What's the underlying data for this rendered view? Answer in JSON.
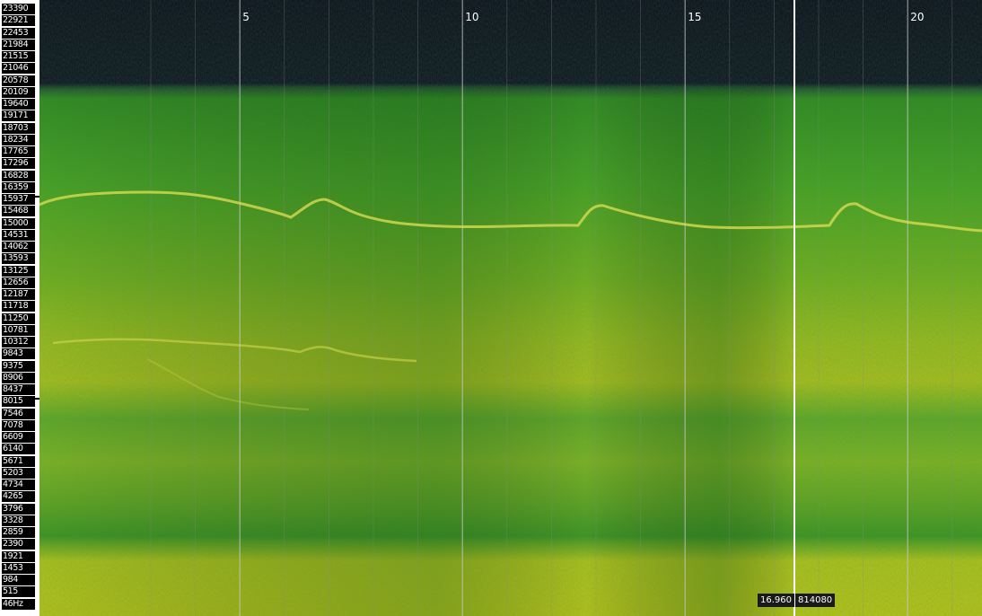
{
  "frequency_axis": {
    "labels": [
      "23390",
      "22921",
      "22453",
      "21984",
      "21515",
      "21046",
      "20578",
      "20109",
      "19640",
      "19171",
      "18703",
      "18234",
      "17765",
      "17296",
      "16828",
      "16359",
      "15937",
      "15468",
      "15000",
      "14531",
      "14062",
      "13593",
      "13125",
      "12656",
      "12187",
      "11718",
      "11250",
      "10781",
      "10312",
      "9843",
      "9375",
      "8906",
      "8437",
      "8015",
      "7546",
      "7078",
      "6609",
      "6140",
      "5671",
      "5203",
      "4734",
      "4265",
      "3796",
      "3328",
      "2859",
      "2390",
      "1921",
      "1453",
      "984",
      "515",
      "46Hz"
    ]
  },
  "time_axis": {
    "labels": [
      "5",
      "10",
      "15",
      "20"
    ]
  },
  "cursor": {
    "time_readout": "16.960",
    "sample_readout": "814080"
  },
  "colors": {
    "background_dark": "#0d1322",
    "spectrum_green": "#3f9a24",
    "spectrum_yellow": "#b5c61c",
    "bright_trace": "#e0e35a"
  }
}
